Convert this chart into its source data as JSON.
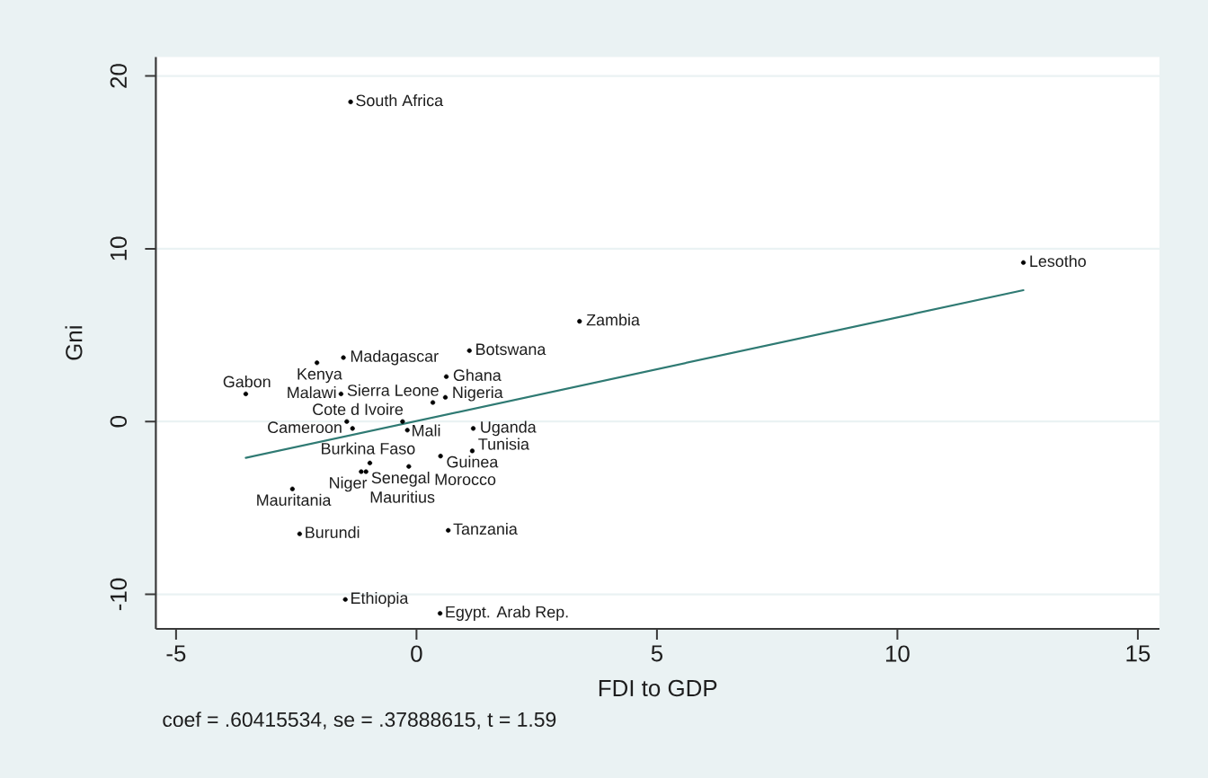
{
  "chart_data": {
    "type": "scatter",
    "xlabel": "FDI to GDP",
    "ylabel": "Gni",
    "xlim": [
      -5.42,
      15.45
    ],
    "ylim": [
      -12.0,
      21.1
    ],
    "xticks": [
      -5,
      0,
      5,
      10,
      15
    ],
    "yticks": [
      -10,
      0,
      10,
      20
    ],
    "grid": "y",
    "marker": "circle",
    "series": [
      {
        "color": "#000000",
        "x": [
          -1.37,
          12.62,
          3.39,
          1.1,
          -2.07,
          -1.52,
          0.62,
          -3.55,
          -1.57,
          0.6,
          0.34,
          -1.45,
          -0.29,
          -1.33,
          -0.19,
          1.18,
          1.16,
          0.5,
          -0.97,
          -0.16,
          -1.15,
          -1.05,
          -2.58,
          -2.43,
          0.66,
          -1.48,
          0.49
        ],
        "values": [
          18.5,
          9.2,
          5.8,
          4.1,
          3.4,
          3.7,
          2.6,
          1.6,
          1.6,
          1.4,
          1.1,
          0.0,
          0.0,
          -0.4,
          -0.5,
          -0.4,
          -1.7,
          -2.0,
          -2.4,
          -2.6,
          -2.9,
          -2.9,
          -3.9,
          -6.5,
          -6.3,
          -10.3,
          -11.1
        ]
      },
      {
        "type": "line",
        "color": "#2f7a73",
        "x": [
          -3.55,
          12.62
        ],
        "values": [
          -2.1,
          7.6
        ],
        "marker": "none",
        "line_style": "solid"
      }
    ],
    "annotations": [
      {
        "text": "South Africa",
        "x": -1.37,
        "y": 18.5
      },
      {
        "text": "Lesotho",
        "x": 12.62,
        "y": 9.2
      },
      {
        "text": "Zambia",
        "x": 3.39,
        "y": 5.8
      },
      {
        "text": "Botswana",
        "x": 1.1,
        "y": 4.1
      },
      {
        "text": "Kenya",
        "x": -2.07,
        "y": 3.4
      },
      {
        "text": "Madagascar",
        "x": -1.52,
        "y": 3.7
      },
      {
        "text": "Ghana",
        "x": 0.62,
        "y": 2.6
      },
      {
        "text": "Gabon",
        "x": -3.55,
        "y": 1.6
      },
      {
        "text": "Malawi",
        "x": -1.57,
        "y": 1.6
      },
      {
        "text": "Nigeria",
        "x": 0.6,
        "y": 1.4
      },
      {
        "text": "Sierra Leone",
        "x": 0.34,
        "y": 1.1
      },
      {
        "text": "Cameroon",
        "x": -1.45,
        "y": 0.0
      },
      {
        "text": "Cote d Ivoire",
        "x": -0.29,
        "y": 0.0
      },
      {
        "text": "Burkina Faso",
        "x": -1.33,
        "y": -0.4
      },
      {
        "text": "Mali",
        "x": -0.19,
        "y": -0.5
      },
      {
        "text": "Uganda",
        "x": 1.18,
        "y": -0.4
      },
      {
        "text": "Tunisia",
        "x": 1.16,
        "y": -1.7
      },
      {
        "text": "Guinea",
        "x": 0.5,
        "y": -2.0
      },
      {
        "text": "Senegal",
        "x": -0.97,
        "y": -2.4
      },
      {
        "text": "Morocco",
        "x": -0.16,
        "y": -2.6
      },
      {
        "text": "Mauritius",
        "x": -1.15,
        "y": -2.9
      },
      {
        "text": "Niger",
        "x": -1.05,
        "y": -2.9
      },
      {
        "text": "Mauritania",
        "x": -2.58,
        "y": -3.9
      },
      {
        "text": "Burundi",
        "x": -2.43,
        "y": -6.5
      },
      {
        "text": "Tanzania",
        "x": 0.66,
        "y": -6.3
      },
      {
        "text": "Ethiopia",
        "x": -1.48,
        "y": -10.3
      },
      {
        "text": "Egypt. Arab Rep.",
        "x": 0.49,
        "y": -11.1
      },
      "coef = .60415534, se = .37888615, t = 1.59"
    ]
  }
}
